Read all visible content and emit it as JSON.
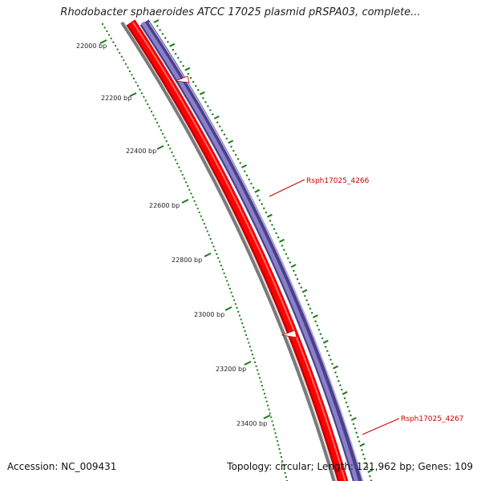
{
  "title": "Rhodobacter sphaeroides ATCC 17025 plasmid pRSPA03, complete...",
  "footer": {
    "accession": "Accession: NC_009431",
    "summary": "Topology: circular; Length: 121,962 bp; Genes: 109"
  },
  "ruler": {
    "labels": [
      "22000 bp",
      "22200 bp",
      "22400 bp",
      "22600 bp",
      "22800 bp",
      "23000 bp",
      "23200 bp",
      "23400 bp"
    ],
    "color": "#1a7a1a"
  },
  "genes": [
    {
      "name": "Rsph17025_4266",
      "color": "#cc0000"
    },
    {
      "name": "Rsph17025_4267",
      "color": "#cc0000"
    }
  ],
  "colors": {
    "backbone": "#7a7a7a",
    "gene_red": "#ff0000",
    "gene_red_dark": "#bb0000",
    "outer_purple": "#4a3f8f",
    "outer_lavender": "#8a80c2",
    "tick_green": "#1a7a1a"
  }
}
